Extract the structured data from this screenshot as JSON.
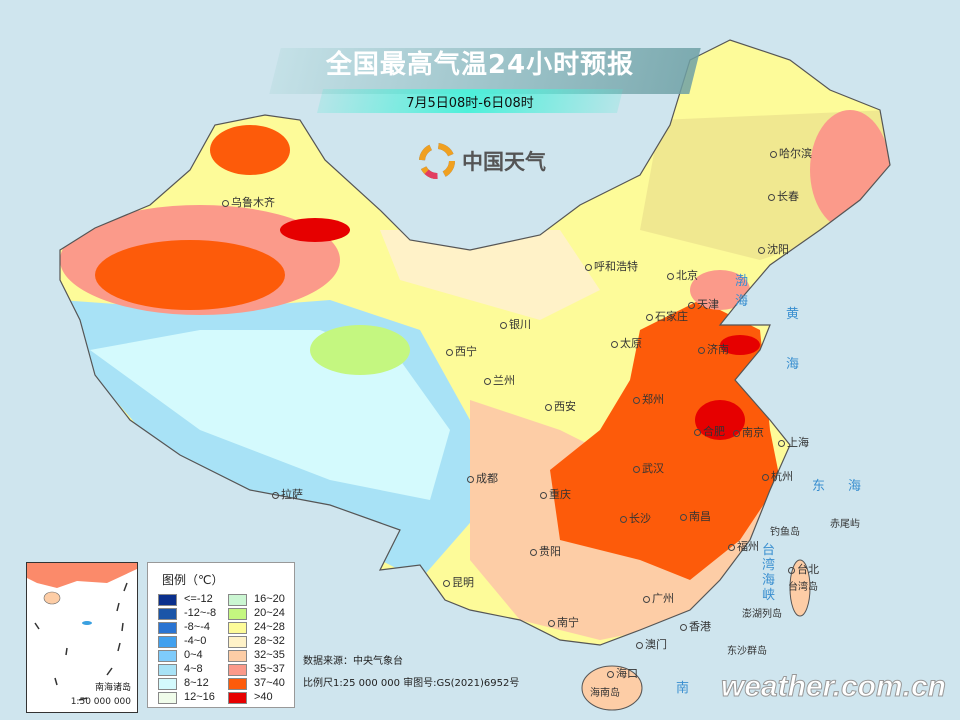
{
  "header": {
    "title": "全国最高气温24小时预报",
    "subtitle": "7月5日08时-6日08时"
  },
  "brand": {
    "name": "中国天气",
    "icon": "china-weather-swirl-logo"
  },
  "legend": {
    "title": "图例（℃）",
    "items": [
      {
        "label": "<=-12",
        "color": "#0a2f8c"
      },
      {
        "label": "-12~-8",
        "color": "#1a55a8"
      },
      {
        "label": "-8~-4",
        "color": "#2a74d2"
      },
      {
        "label": "-4~0",
        "color": "#41a0ee"
      },
      {
        "label": "0~4",
        "color": "#7ecbfb"
      },
      {
        "label": "4~8",
        "color": "#a8e2f6"
      },
      {
        "label": "8~12",
        "color": "#d4fafd"
      },
      {
        "label": "12~16",
        "color": "#f0fcea"
      },
      {
        "label": "16~20",
        "color": "#cbf6d2"
      },
      {
        "label": "20~24",
        "color": "#c4f780"
      },
      {
        "label": "24~28",
        "color": "#fdfb99"
      },
      {
        "label": "28~32",
        "color": "#fff2c8"
      },
      {
        "label": "32~35",
        "color": "#fdcda6"
      },
      {
        "label": "35~37",
        "color": "#fb9a8a"
      },
      {
        "label": "37~40",
        "color": "#fd5b0a"
      },
      {
        "label": ">40",
        "color": "#e60000"
      }
    ]
  },
  "cities": [
    "乌鲁木齐",
    "哈尔滨",
    "长春",
    "沈阳",
    "呼和浩特",
    "北京",
    "天津",
    "石家庄",
    "济南",
    "太原",
    "银川",
    "西宁",
    "兰州",
    "西安",
    "郑州",
    "合肥",
    "南京",
    "上海",
    "武汉",
    "杭州",
    "成都",
    "拉萨",
    "重庆",
    "长沙",
    "南昌",
    "福州",
    "贵阳",
    "昆明",
    "台北",
    "南宁",
    "广州",
    "香港",
    "澳门",
    "海口"
  ],
  "places": [
    "海南岛",
    "台湾岛",
    "钓鱼岛",
    "赤尾屿",
    "澎湖列岛",
    "东沙群岛"
  ],
  "seas": [
    "渤",
    "海",
    "黄",
    "海",
    "东",
    "海",
    "台",
    "湾",
    "海",
    "峡",
    "南"
  ],
  "inset": {
    "name": "南海诸岛",
    "scale": "1:50 000 000"
  },
  "footer": {
    "source": "数据来源：中央气象台",
    "scale": "比例尺1:25 000 000   审图号:GS(2021)6952号"
  },
  "watermark": "weather.com.cn"
}
